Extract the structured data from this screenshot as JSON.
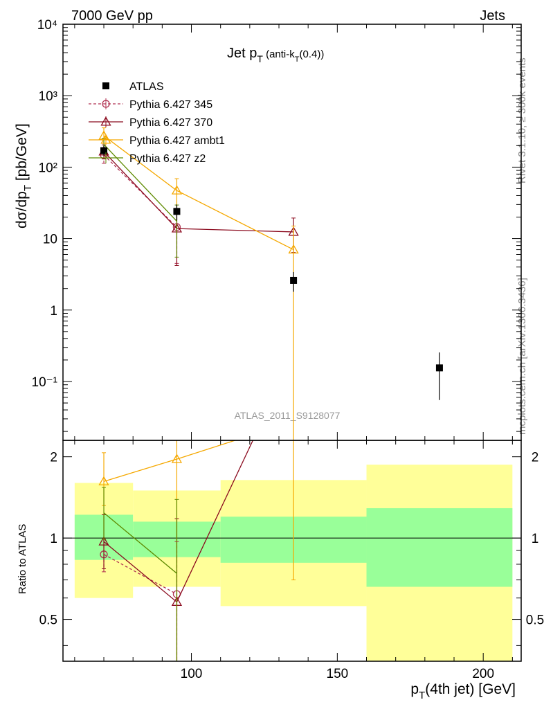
{
  "header": {
    "left": "7000 GeV pp",
    "right": "Jets",
    "title_main": "Jet p",
    "title_sub": "T",
    "title_extra": " (anti-k",
    "title_extra_sub": "T",
    "title_extra2": "(0.4))"
  },
  "side": {
    "rivet": "Rivet 3.1.10, ≥ 300k events",
    "mcplots": "mcplots.cern.ch [arXiv:1306.3436]"
  },
  "watermark": "ATLAS_2011_S9128077",
  "labels": {
    "ylabel_main": "dσ/dp",
    "ylabel_main_sub": "T",
    "ylabel_main_unit": " [pb/GeV]",
    "ylabel_ratio": "Ratio to ATLAS",
    "xlabel_main": "p",
    "xlabel_sub": "T",
    "xlabel_rest": "(4th jet) [GeV]"
  },
  "colors": {
    "atlas": "#000000",
    "p345": "#b03050",
    "p370": "#8b0a1e",
    "ambt1": "#f5a800",
    "z2": "#5e8a00",
    "band_inner": "#99ff99",
    "band_outer": "#ffff99"
  },
  "chart_data": {
    "type": "scatter",
    "title": "Jet pT (anti-kT(0.4))",
    "xlabel": "pT(4th jet) [GeV]",
    "ylabel": "dσ/dpT [pb/GeV]",
    "xlim": [
      56,
      213
    ],
    "ylim": [
      0.015,
      10000
    ],
    "yscale": "log",
    "ratio_ylabel": "Ratio to ATLAS",
    "ratio_ylim": [
      0.35,
      2.3
    ],
    "ratio_yscale": "log",
    "x_ticks": [
      100,
      150,
      200
    ],
    "x_tick_labels": [
      "100",
      "150",
      "200"
    ],
    "y_ticks": [
      0.1,
      1,
      10,
      100,
      1000,
      10000
    ],
    "y_tick_labels": [
      "10⁻¹",
      "1",
      "10",
      "10²",
      "10³",
      "10⁴"
    ],
    "ratio_ticks": [
      0.5,
      1,
      2
    ],
    "ratio_tick_labels": [
      "0.5",
      "1",
      "2"
    ],
    "bins": [
      {
        "lo": 60,
        "hi": 80
      },
      {
        "lo": 80,
        "hi": 110
      },
      {
        "lo": 110,
        "hi": 160
      },
      {
        "lo": 160,
        "hi": 210
      }
    ],
    "atlas": {
      "name": "ATLAS",
      "x": [
        70,
        95,
        135,
        185
      ],
      "y": [
        170,
        24,
        2.6,
        0.155
      ],
      "yerr_lo": [
        25,
        6,
        0.8,
        0.1
      ],
      "yerr_hi": [
        30,
        6,
        0.8,
        0.1
      ],
      "band_inner": [
        [
          0.83,
          1.22
        ],
        [
          0.85,
          1.15
        ],
        [
          0.81,
          1.2
        ],
        [
          0.66,
          1.29
        ]
      ],
      "band_outer": [
        [
          0.6,
          1.6
        ],
        [
          0.66,
          1.5
        ],
        [
          0.56,
          1.64
        ],
        [
          0.33,
          1.87
        ]
      ]
    },
    "series": [
      {
        "name": "Pythia 6.427 345",
        "color_key": "p345",
        "dashed": true,
        "marker": "circle",
        "x": [
          70,
          95
        ],
        "y": [
          148,
          14.5
        ],
        "err_lo": [
          35,
          10
        ],
        "err_hi": [
          40,
          10
        ],
        "ratio": [
          0.87,
          0.62
        ],
        "ratio_err_lo": [
          0.12,
          0.28
        ],
        "ratio_err_hi": [
          0.12,
          0.35
        ]
      },
      {
        "name": "Pythia 6.427 370",
        "color_key": "p370",
        "dashed": false,
        "marker": "triangle",
        "x": [
          70,
          95,
          135
        ],
        "y": [
          165,
          13.8,
          12.4
        ],
        "err_lo": [
          35,
          9.6,
          6
        ],
        "err_hi": [
          40,
          9.6,
          7
        ],
        "ratio": [
          0.97,
          0.58,
          4.8
        ],
        "ratio_err_lo": [
          0.2,
          0.3,
          2
        ],
        "ratio_err_hi": [
          0.25,
          0.6,
          2
        ]
      },
      {
        "name": "Pythia 6.427 ambt1",
        "color_key": "ambt1",
        "dashed": false,
        "marker": "triangle",
        "x": [
          70,
          95,
          135
        ],
        "y": [
          275,
          47,
          7.0
        ],
        "err_lo": [
          60,
          22,
          7
        ],
        "err_hi": [
          80,
          22,
          8
        ],
        "ratio": [
          1.62,
          1.96,
          2.7
        ],
        "ratio_err_lo": [
          0.3,
          1.7,
          2
        ],
        "ratio_err_hi": [
          0.45,
          1,
          1
        ]
      },
      {
        "name": "Pythia 6.427 z2",
        "color_key": "z2",
        "dashed": false,
        "marker": "none",
        "x": [
          70,
          95
        ],
        "y": [
          208,
          17.5
        ],
        "err_lo": [
          40,
          12
        ],
        "err_hi": [
          45,
          12
        ],
        "ratio": [
          1.24,
          0.74
        ],
        "ratio_err_lo": [
          0.25,
          0.4
        ],
        "ratio_err_hi": [
          0.3,
          0.65
        ]
      }
    ]
  }
}
